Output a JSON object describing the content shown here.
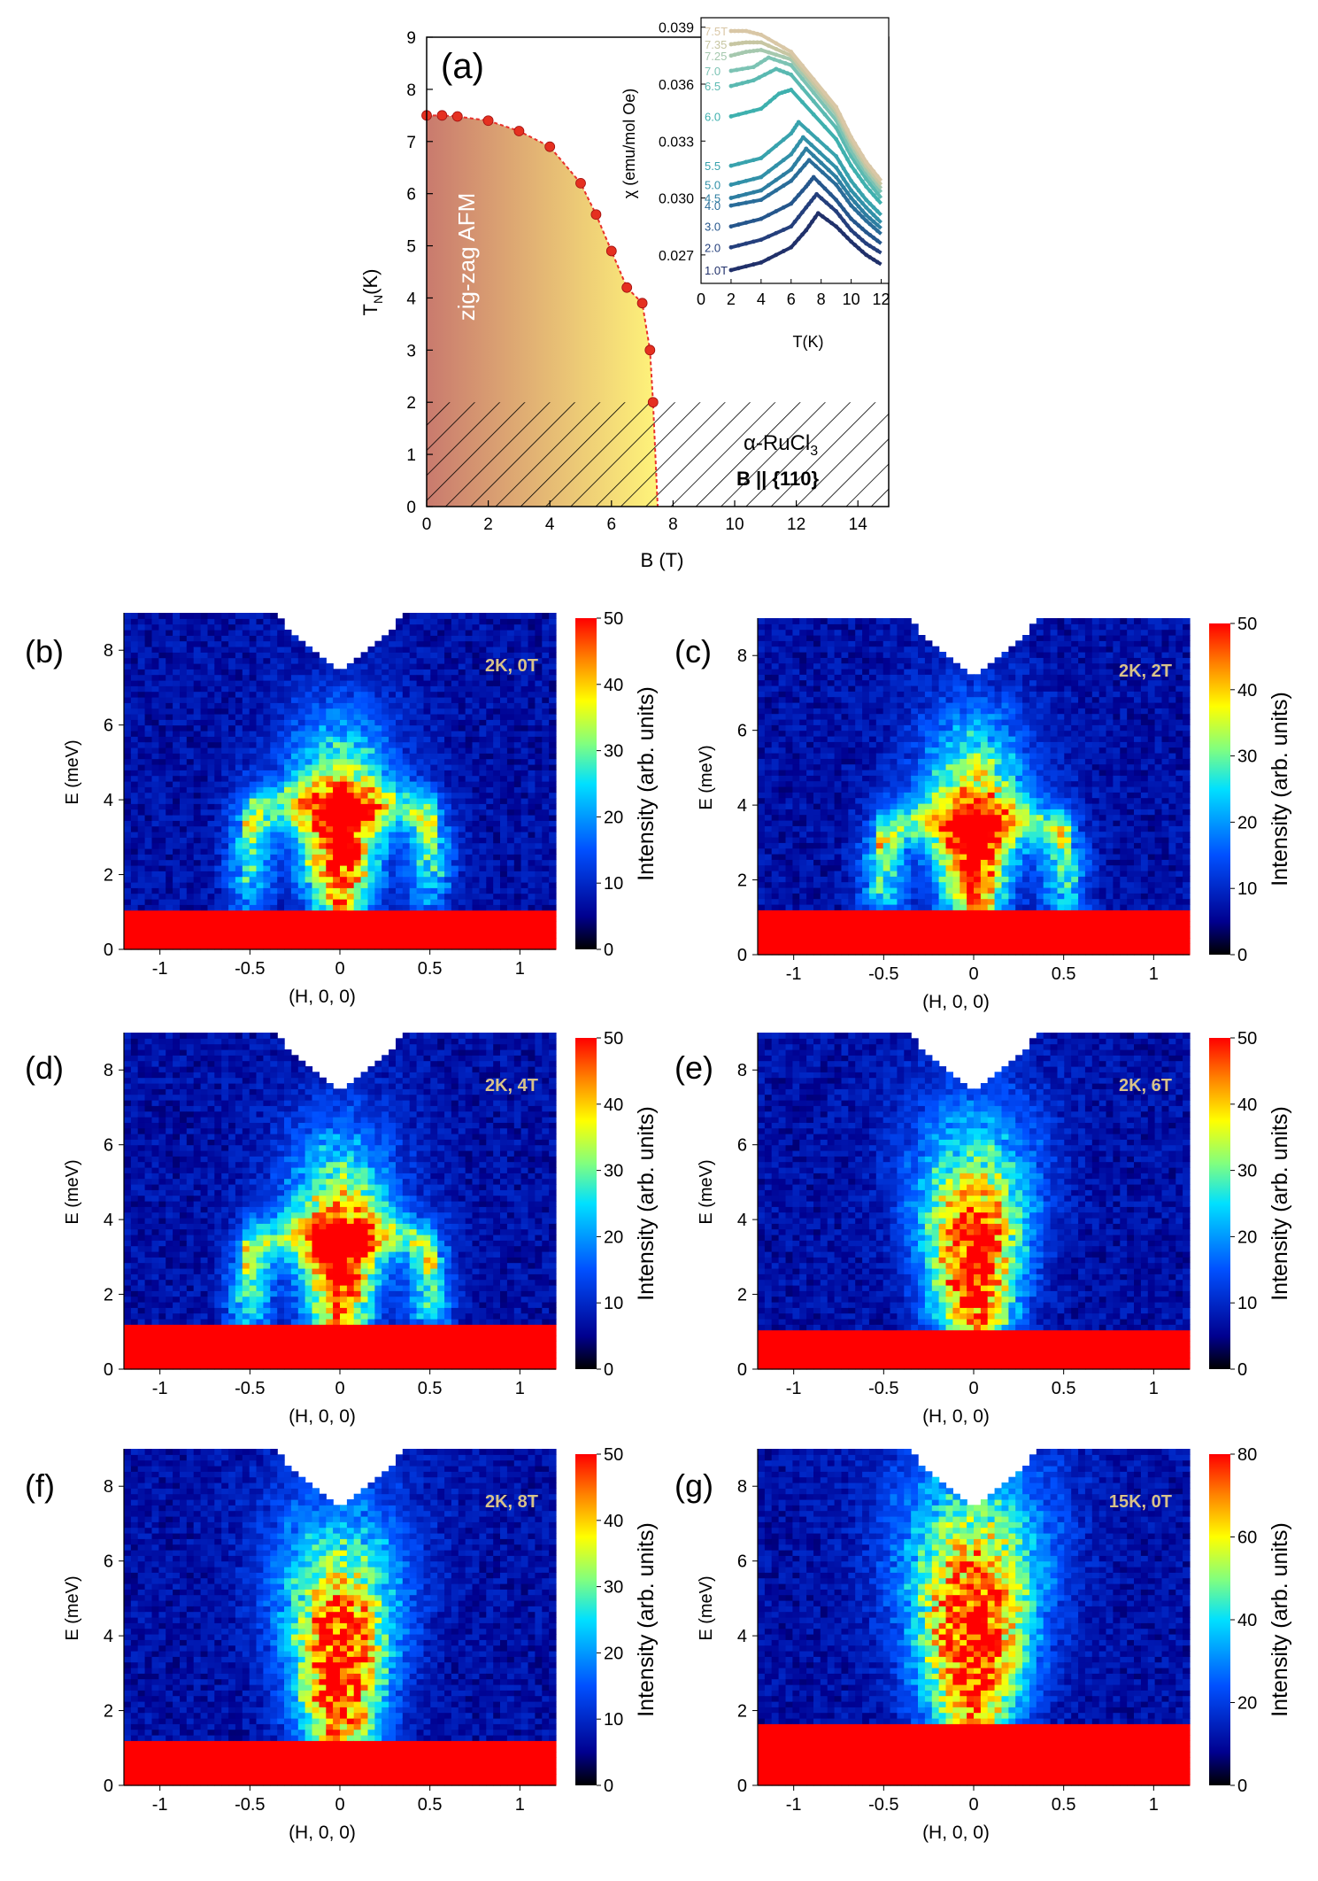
{
  "figure": {
    "panel_a": {
      "label": "(a)",
      "region_label": "zig-zag AFM",
      "material_label": "α-RuCl",
      "material_subscript": "3",
      "field_label": "B || {110}",
      "colors": {
        "points": "#e53020",
        "line": "#e8302a",
        "fill_left": "#c97a6e",
        "fill_right": "#fff47a"
      }
    },
    "colorbar_label": "Intensity (arb. units)",
    "map_panels": [
      {
        "label": "(b)",
        "condition": "2K, 0T"
      },
      {
        "label": "(c)",
        "condition": "2K, 2T"
      },
      {
        "label": "(d)",
        "condition": "2K, 4T"
      },
      {
        "label": "(e)",
        "condition": "2K, 6T"
      },
      {
        "label": "(f)",
        "condition": "2K, 8T"
      },
      {
        "label": "(g)",
        "condition": "15K, 0T"
      }
    ]
  },
  "chart_data": [
    {
      "type": "scatter",
      "id": "phase-diagram",
      "title": "",
      "xlabel": "B (T)",
      "ylabel": "T_N(K)",
      "xlim": [
        0,
        15
      ],
      "ylim": [
        0,
        9
      ],
      "xticks": [
        0,
        2,
        4,
        6,
        8,
        10,
        12,
        14
      ],
      "yticks": [
        0,
        1,
        2,
        3,
        4,
        5,
        6,
        7,
        8,
        9
      ],
      "series": [
        {
          "name": "T_N",
          "x": [
            0,
            0.5,
            1.0,
            2.0,
            3.0,
            4.0,
            5.0,
            5.5,
            6.0,
            6.5,
            7.0,
            7.25,
            7.35,
            7.5
          ],
          "y": [
            7.5,
            7.5,
            7.48,
            7.4,
            7.2,
            6.9,
            6.2,
            5.6,
            4.9,
            4.2,
            3.9,
            3.0,
            2.0,
            0.0
          ]
        }
      ]
    },
    {
      "type": "line",
      "id": "susceptibility-inset",
      "title": "",
      "xlabel": "T(K)",
      "ylabel": "χ (emu/mol Oe)",
      "xlim": [
        0,
        12.5
      ],
      "ylim": [
        0.0255,
        0.0395
      ],
      "xticks": [
        0,
        2,
        4,
        6,
        8,
        10,
        12
      ],
      "yticks": [
        0.027,
        0.03,
        0.033,
        0.036,
        0.039
      ],
      "ytick_labels": [
        "0.027",
        "0.030",
        "0.033",
        "0.036",
        "0.039"
      ],
      "curve_labels": [
        "1.0T",
        "2.0",
        "3.0",
        "4.0",
        "4.5",
        "5.0",
        "5.5",
        "6.0",
        "6.5",
        "7.0",
        "7.25",
        "7.35",
        "7.5T"
      ],
      "series": [
        {
          "name": "1.0T",
          "color": "#20306a",
          "x": [
            2,
            4,
            6,
            7,
            7.8,
            9,
            10,
            11,
            12
          ],
          "y": [
            0.0262,
            0.0266,
            0.0274,
            0.0283,
            0.0292,
            0.0285,
            0.0277,
            0.027,
            0.0265
          ]
        },
        {
          "name": "2.0",
          "color": "#243f7c",
          "x": [
            2,
            4,
            6,
            7,
            7.7,
            9,
            10,
            11,
            12
          ],
          "y": [
            0.0274,
            0.0278,
            0.0285,
            0.0295,
            0.0302,
            0.0293,
            0.0283,
            0.0276,
            0.0271
          ]
        },
        {
          "name": "3.0",
          "color": "#25568c",
          "x": [
            2,
            4,
            6,
            7,
            7.5,
            9,
            10,
            11,
            12
          ],
          "y": [
            0.0285,
            0.0289,
            0.0297,
            0.0306,
            0.0311,
            0.0299,
            0.0289,
            0.0282,
            0.0276
          ]
        },
        {
          "name": "4.0",
          "color": "#296c99",
          "x": [
            2,
            4,
            6,
            7.2,
            9,
            10,
            11,
            12
          ],
          "y": [
            0.0296,
            0.0299,
            0.0309,
            0.032,
            0.0307,
            0.0296,
            0.0288,
            0.0281
          ]
        },
        {
          "name": "4.5",
          "color": "#2d7ea1",
          "x": [
            2,
            4,
            6,
            7.0,
            9,
            10,
            11,
            12
          ],
          "y": [
            0.03,
            0.0304,
            0.0315,
            0.0326,
            0.0311,
            0.03,
            0.0291,
            0.0284
          ]
        },
        {
          "name": "5.0",
          "color": "#3190a8",
          "x": [
            2,
            4,
            6,
            6.8,
            9,
            10,
            11,
            12
          ],
          "y": [
            0.0307,
            0.0311,
            0.0323,
            0.0332,
            0.0316,
            0.0304,
            0.0295,
            0.0287
          ]
        },
        {
          "name": "5.5",
          "color": "#38a2ad",
          "x": [
            2,
            4,
            6,
            6.5,
            9,
            10,
            11,
            12
          ],
          "y": [
            0.0317,
            0.0321,
            0.0334,
            0.034,
            0.0322,
            0.0309,
            0.0299,
            0.0291
          ]
        },
        {
          "name": "6.0",
          "color": "#3eb0ae",
          "x": [
            2,
            4,
            5.2,
            6,
            9,
            10,
            11,
            12
          ],
          "y": [
            0.0343,
            0.0347,
            0.0355,
            0.0357,
            0.0331,
            0.0317,
            0.0306,
            0.0297
          ]
        },
        {
          "name": "6.5",
          "color": "#5ab9b1",
          "x": [
            2,
            3.5,
            5.0,
            6,
            9,
            10,
            11,
            12
          ],
          "y": [
            0.0359,
            0.0362,
            0.0368,
            0.0365,
            0.0337,
            0.0322,
            0.031,
            0.03
          ]
        },
        {
          "name": "7.0",
          "color": "#7cc3b4",
          "x": [
            2,
            3.5,
            4.5,
            6,
            9,
            10,
            11,
            12
          ],
          "y": [
            0.0367,
            0.0369,
            0.0374,
            0.037,
            0.0341,
            0.0325,
            0.0313,
            0.0303
          ]
        },
        {
          "name": "7.25",
          "color": "#a5c8ae",
          "x": [
            2,
            3.0,
            4.0,
            6,
            9,
            10,
            11,
            12
          ],
          "y": [
            0.0375,
            0.0377,
            0.0378,
            0.0373,
            0.0344,
            0.0328,
            0.0315,
            0.0305
          ]
        },
        {
          "name": "7.35",
          "color": "#c7c6a2",
          "x": [
            2,
            3.0,
            4.0,
            6,
            9,
            10,
            11,
            12
          ],
          "y": [
            0.0381,
            0.0382,
            0.0382,
            0.0375,
            0.0346,
            0.033,
            0.0317,
            0.0307
          ]
        },
        {
          "name": "7.5T",
          "color": "#d9c7a6",
          "x": [
            2,
            3.0,
            4.0,
            6,
            9,
            10,
            11,
            12
          ],
          "y": [
            0.0388,
            0.0388,
            0.0386,
            0.0377,
            0.0348,
            0.0332,
            0.0319,
            0.0309
          ]
        }
      ]
    },
    {
      "type": "heatmap",
      "id": "map-b",
      "title": "2K, 0T",
      "xlabel": "(H, 0, 0)",
      "ylabel": "E (meV)",
      "xlim": [
        -1.2,
        1.2
      ],
      "ylim": [
        0,
        9
      ],
      "xticks": [
        -1,
        -0.5,
        0,
        0.5,
        1
      ],
      "xtick_labels": [
        "-1",
        "-0.5",
        "0",
        "0.5",
        "1"
      ],
      "yticks": [
        0,
        2,
        4,
        6,
        8
      ],
      "colorbar": {
        "min": 0,
        "max": 50,
        "ticks": [
          0,
          10,
          20,
          30,
          40,
          50
        ]
      },
      "features": {
        "central_peak_energy": 2.8,
        "central_width": 0.1,
        "central_spread": 4.0,
        "side_arcs_H": [
          -0.5,
          0.5
        ],
        "side_arcs_energy": 2.5,
        "elastic_cutoff": 1.1
      }
    },
    {
      "type": "heatmap",
      "id": "map-c",
      "title": "2K, 2T",
      "xlabel": "(H, 0, 0)",
      "ylabel": "E (meV)",
      "xlim": [
        -1.2,
        1.2
      ],
      "ylim": [
        0,
        9
      ],
      "xticks": [
        -1,
        -0.5,
        0,
        0.5,
        1
      ],
      "xtick_labels": [
        "-1",
        "-0.5",
        "0",
        "0.5",
        "1"
      ],
      "yticks": [
        0,
        2,
        4,
        6,
        8
      ],
      "colorbar": {
        "min": 0,
        "max": 50,
        "ticks": [
          0,
          10,
          20,
          30,
          40,
          50
        ]
      },
      "features": {
        "central_peak_energy": 2.8,
        "central_width": 0.1,
        "central_spread": 4.5,
        "side_arcs_H": [
          -0.5,
          0.5
        ],
        "side_arcs_energy": 2.2,
        "elastic_cutoff": 1.2
      }
    },
    {
      "type": "heatmap",
      "id": "map-d",
      "title": "2K, 4T",
      "xlabel": "(H, 0, 0)",
      "ylabel": "E (meV)",
      "xlim": [
        -1.2,
        1.2
      ],
      "ylim": [
        0,
        9
      ],
      "xticks": [
        -1,
        -0.5,
        0,
        0.5,
        1
      ],
      "xtick_labels": [
        "-1",
        "-0.5",
        "0",
        "0.5",
        "1"
      ],
      "yticks": [
        0,
        2,
        4,
        6,
        8
      ],
      "colorbar": {
        "min": 0,
        "max": 50,
        "ticks": [
          0,
          10,
          20,
          30,
          40,
          50
        ]
      },
      "features": {
        "central_peak_energy": 2.8,
        "central_width": 0.1,
        "central_spread": 4.5,
        "side_arcs_H": [
          -0.5,
          0.5
        ],
        "side_arcs_energy": 2.2,
        "elastic_cutoff": 1.2
      }
    },
    {
      "type": "heatmap",
      "id": "map-e",
      "title": "2K, 6T",
      "xlabel": "(H, 0, 0)",
      "ylabel": "E (meV)",
      "xlim": [
        -1.2,
        1.2
      ],
      "ylim": [
        0,
        9
      ],
      "xticks": [
        -1,
        -0.5,
        0,
        0.5,
        1
      ],
      "xtick_labels": [
        "-1",
        "-0.5",
        "0",
        "0.5",
        "1"
      ],
      "yticks": [
        0,
        2,
        4,
        6,
        8
      ],
      "colorbar": {
        "min": 0,
        "max": 50,
        "ticks": [
          0,
          10,
          20,
          30,
          40,
          50
        ]
      },
      "features": {
        "central_peak_energy": 2.8,
        "central_width": 0.13,
        "central_spread": 6.0,
        "side_arcs_H": [],
        "side_arcs_energy": 0,
        "elastic_cutoff": 1.1
      }
    },
    {
      "type": "heatmap",
      "id": "map-f",
      "title": "2K, 8T",
      "xlabel": "(H, 0, 0)",
      "ylabel": "E (meV)",
      "xlim": [
        -1.2,
        1.2
      ],
      "ylim": [
        0,
        9
      ],
      "xticks": [
        -1,
        -0.5,
        0,
        0.5,
        1
      ],
      "xtick_labels": [
        "-1",
        "-0.5",
        "0",
        "0.5",
        "1"
      ],
      "yticks": [
        0,
        2,
        4,
        6,
        8
      ],
      "colorbar": {
        "min": 0,
        "max": 50,
        "ticks": [
          0,
          10,
          20,
          30,
          40,
          50
        ]
      },
      "features": {
        "central_peak_energy": 3.2,
        "central_width": 0.13,
        "central_spread": 6.5,
        "side_arcs_H": [],
        "side_arcs_energy": 0,
        "elastic_cutoff": 1.2
      }
    },
    {
      "type": "heatmap",
      "id": "map-g",
      "title": "15K, 0T",
      "xlabel": "(H, 0, 0)",
      "ylabel": "E (meV)",
      "xlim": [
        -1.2,
        1.2
      ],
      "ylim": [
        0,
        9
      ],
      "xticks": [
        -1,
        -0.5,
        0,
        0.5,
        1
      ],
      "xtick_labels": [
        "-1",
        "-0.5",
        "0",
        "0.5",
        "1"
      ],
      "yticks": [
        0,
        2,
        4,
        6,
        8
      ],
      "colorbar": {
        "min": 0,
        "max": 80,
        "ticks": [
          0,
          20,
          40,
          60,
          80
        ]
      },
      "features": {
        "central_peak_energy": 4.0,
        "central_width": 0.15,
        "central_spread": 8.0,
        "side_arcs_H": [],
        "side_arcs_energy": 0,
        "elastic_cutoff": 1.7
      }
    }
  ]
}
